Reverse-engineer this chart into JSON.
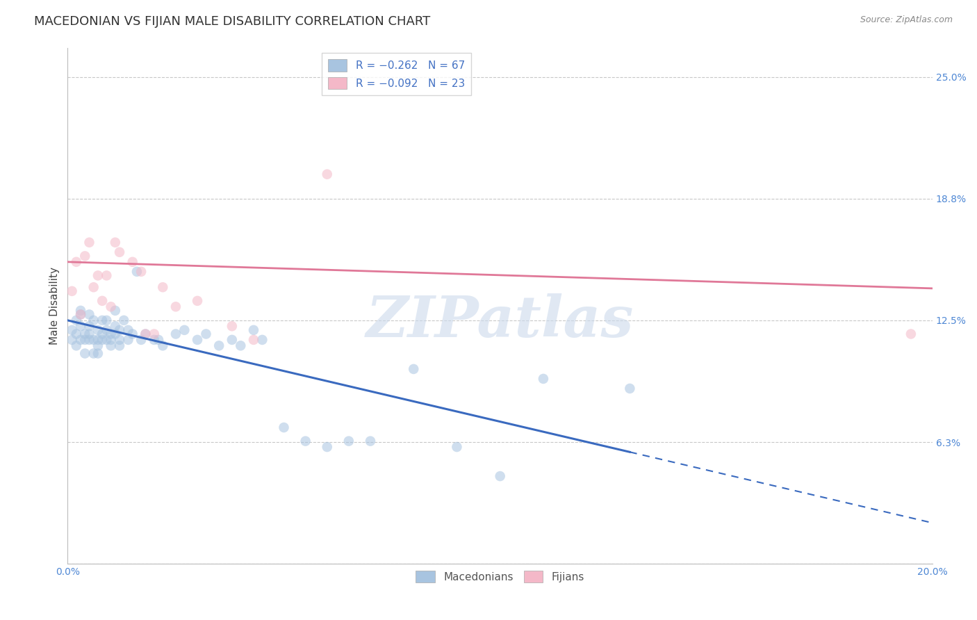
{
  "title": "MACEDONIAN VS FIJIAN MALE DISABILITY CORRELATION CHART",
  "source": "Source: ZipAtlas.com",
  "ylabel": "Male Disability",
  "xlabel": "",
  "xlim": [
    0.0,
    0.2
  ],
  "ylim": [
    0.0,
    0.265
  ],
  "yticks": [
    0.0,
    0.0625,
    0.125,
    0.1875,
    0.25
  ],
  "ytick_labels": [
    "",
    "6.3%",
    "12.5%",
    "18.8%",
    "25.0%"
  ],
  "xticks": [
    0.0,
    0.05,
    0.1,
    0.15,
    0.2
  ],
  "xtick_labels": [
    "0.0%",
    "",
    "",
    "",
    "20.0%"
  ],
  "macedonian_color": "#a8c4e0",
  "fijian_color": "#f4b8c8",
  "macedonian_line_color": "#3a6abf",
  "fijian_line_color": "#e07898",
  "legend_mac_color": "#4472c4",
  "legend_fij_color": "#e07898",
  "mac_line_solid_end": 0.13,
  "mac_line_start_y": 0.125,
  "mac_line_slope": -0.52,
  "fij_line_start_y": 0.155,
  "fij_line_slope": -0.068,
  "macedonian_x": [
    0.001,
    0.001,
    0.002,
    0.002,
    0.002,
    0.003,
    0.003,
    0.003,
    0.003,
    0.004,
    0.004,
    0.004,
    0.005,
    0.005,
    0.005,
    0.005,
    0.006,
    0.006,
    0.006,
    0.007,
    0.007,
    0.007,
    0.007,
    0.008,
    0.008,
    0.008,
    0.009,
    0.009,
    0.009,
    0.01,
    0.01,
    0.01,
    0.011,
    0.011,
    0.011,
    0.012,
    0.012,
    0.012,
    0.013,
    0.014,
    0.014,
    0.015,
    0.016,
    0.017,
    0.018,
    0.02,
    0.021,
    0.022,
    0.025,
    0.027,
    0.03,
    0.032,
    0.035,
    0.038,
    0.04,
    0.043,
    0.045,
    0.05,
    0.055,
    0.06,
    0.065,
    0.07,
    0.08,
    0.09,
    0.1,
    0.11,
    0.13
  ],
  "macedonian_y": [
    0.12,
    0.115,
    0.125,
    0.118,
    0.112,
    0.128,
    0.122,
    0.115,
    0.13,
    0.118,
    0.115,
    0.108,
    0.122,
    0.118,
    0.128,
    0.115,
    0.125,
    0.115,
    0.108,
    0.115,
    0.12,
    0.112,
    0.108,
    0.125,
    0.115,
    0.118,
    0.12,
    0.115,
    0.125,
    0.118,
    0.112,
    0.115,
    0.13,
    0.122,
    0.118,
    0.115,
    0.12,
    0.112,
    0.125,
    0.115,
    0.12,
    0.118,
    0.15,
    0.115,
    0.118,
    0.115,
    0.115,
    0.112,
    0.118,
    0.12,
    0.115,
    0.118,
    0.112,
    0.115,
    0.112,
    0.12,
    0.115,
    0.07,
    0.063,
    0.06,
    0.063,
    0.063,
    0.1,
    0.06,
    0.045,
    0.095,
    0.09
  ],
  "fijian_x": [
    0.001,
    0.002,
    0.003,
    0.004,
    0.005,
    0.006,
    0.007,
    0.008,
    0.009,
    0.01,
    0.011,
    0.012,
    0.015,
    0.017,
    0.018,
    0.02,
    0.022,
    0.025,
    0.03,
    0.038,
    0.043,
    0.06,
    0.195
  ],
  "fijian_y": [
    0.14,
    0.155,
    0.128,
    0.158,
    0.165,
    0.142,
    0.148,
    0.135,
    0.148,
    0.132,
    0.165,
    0.16,
    0.155,
    0.15,
    0.118,
    0.118,
    0.142,
    0.132,
    0.135,
    0.122,
    0.115,
    0.2,
    0.118
  ],
  "watermark_text": "ZIPatlas",
  "background_color": "#ffffff",
  "grid_color": "#c8c8c8",
  "title_fontsize": 13,
  "axis_label_fontsize": 11,
  "tick_fontsize": 10,
  "legend_fontsize": 11,
  "dot_size": 110,
  "dot_alpha": 0.55,
  "tick_color": "#4e87d4"
}
